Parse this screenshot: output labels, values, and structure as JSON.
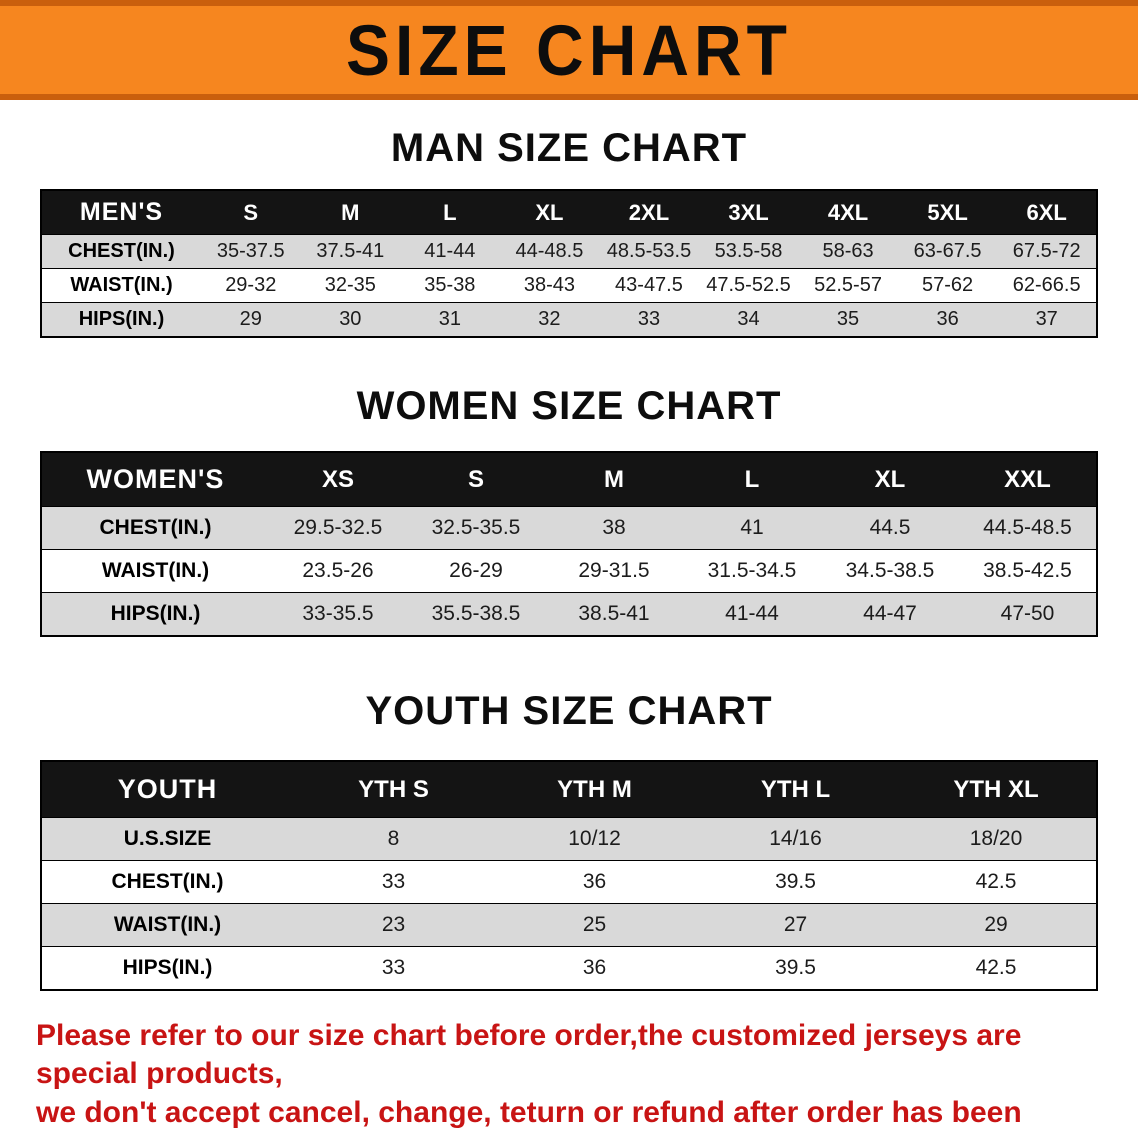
{
  "banner": {
    "title": "SIZE CHART"
  },
  "men": {
    "heading": "MAN SIZE CHART",
    "table": {
      "header": [
        "MEN'S",
        "S",
        "M",
        "L",
        "XL",
        "2XL",
        "3XL",
        "4XL",
        "5XL",
        "6XL"
      ],
      "rows": [
        {
          "label": "CHEST(IN.)",
          "values": [
            "35-37.5",
            "37.5-41",
            "41-44",
            "44-48.5",
            "48.5-53.5",
            "53.5-58",
            "58-63",
            "63-67.5",
            "67.5-72"
          ]
        },
        {
          "label": "WAIST(IN.)",
          "values": [
            "29-32",
            "32-35",
            "35-38",
            "38-43",
            "43-47.5",
            "47.5-52.5",
            "52.5-57",
            "57-62",
            "62-66.5"
          ]
        },
        {
          "label": "HIPS(IN.)",
          "values": [
            "29",
            "30",
            "31",
            "32",
            "33",
            "34",
            "35",
            "36",
            "37"
          ]
        }
      ]
    }
  },
  "women": {
    "heading": "WOMEN SIZE CHART",
    "table": {
      "header": [
        "WOMEN'S",
        "XS",
        "S",
        "M",
        "L",
        "XL",
        "XXL"
      ],
      "rows": [
        {
          "label": "CHEST(IN.)",
          "values": [
            "29.5-32.5",
            "32.5-35.5",
            "38",
            "41",
            "44.5",
            "44.5-48.5"
          ]
        },
        {
          "label": "WAIST(IN.)",
          "values": [
            "23.5-26",
            "26-29",
            "29-31.5",
            "31.5-34.5",
            "34.5-38.5",
            "38.5-42.5"
          ]
        },
        {
          "label": "HIPS(IN.)",
          "values": [
            "33-35.5",
            "35.5-38.5",
            "38.5-41",
            "41-44",
            "44-47",
            "47-50"
          ]
        }
      ]
    }
  },
  "youth": {
    "heading": "YOUTH SIZE CHART",
    "table": {
      "header": [
        "YOUTH",
        "YTH S",
        "YTH M",
        "YTH L",
        "YTH XL"
      ],
      "rows": [
        {
          "label": "U.S.SIZE",
          "values": [
            "8",
            "10/12",
            "14/16",
            "18/20"
          ]
        },
        {
          "label": "CHEST(IN.)",
          "values": [
            "33",
            "36",
            "39.5",
            "42.5"
          ]
        },
        {
          "label": "WAIST(IN.)",
          "values": [
            "23",
            "25",
            "27",
            "29"
          ]
        },
        {
          "label": "HIPS(IN.)",
          "values": [
            "33",
            "36",
            "39.5",
            "42.5"
          ]
        }
      ]
    }
  },
  "notice": {
    "line1": "Please refer to our size chart before order,the customized jerseys are special products,",
    "line2": "we don't accept cancel, change, teturn or refund after order has been placed!"
  },
  "colors": {
    "banner_bg": "#f6861f",
    "banner_border": "#c95f0d",
    "header_bg": "#141414",
    "row_shade": "#d9d9d9",
    "notice_red": "#c81414"
  }
}
